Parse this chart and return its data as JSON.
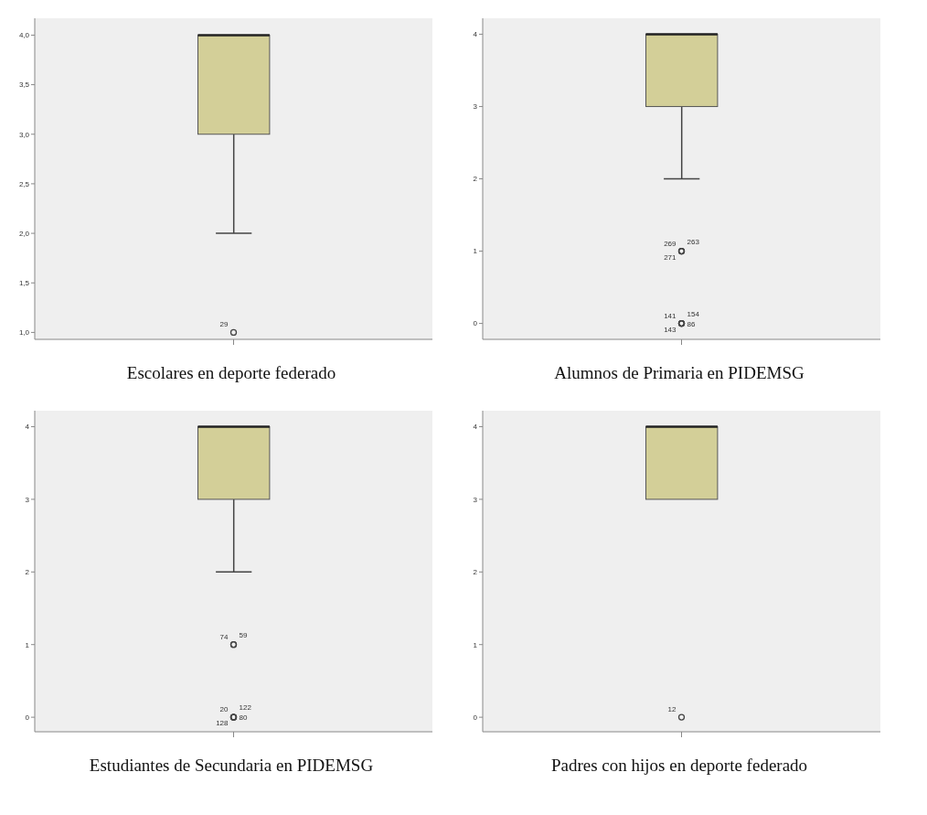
{
  "chart_data": [
    {
      "type": "box",
      "title": "Escolares en deporte federado",
      "categories": [
        null
      ],
      "color": "#d3cf98",
      "boxes": [
        {
          "low": 2,
          "q1": 3,
          "median": 4,
          "q3": 4,
          "high": 4,
          "outliers": [
            1
          ]
        }
      ],
      "ylim": [
        0.93,
        4.17
      ],
      "yticks": [
        {
          "value": 1,
          "label": "1,0"
        },
        {
          "value": 1.5,
          "label": "1,5"
        },
        {
          "value": 2,
          "label": "2,0"
        },
        {
          "value": 2.5,
          "label": "2,5"
        },
        {
          "value": 3,
          "label": "3,0"
        },
        {
          "value": 3.5,
          "label": "3,5"
        },
        {
          "value": 4,
          "label": "4,0"
        }
      ],
      "marker": "circle",
      "annotations": [
        "29"
      ]
    },
    {
      "type": "box",
      "title": "Alumnos de Primaria en PIDEMSG",
      "categories": [
        null
      ],
      "color": "#d3cf98",
      "boxes": [
        {
          "low": 2,
          "q1": 3,
          "median": 4,
          "q3": 4,
          "high": 4,
          "outliers": [
            1,
            1,
            1,
            0,
            0,
            0,
            0
          ]
        }
      ],
      "ylim": [
        -0.22,
        4.22
      ],
      "yticks": [
        0,
        1,
        2,
        3,
        4
      ],
      "marker": "circle",
      "annotations": [
        "269",
        "263",
        "271",
        "141",
        "154",
        "143",
        "86"
      ]
    },
    {
      "type": "box",
      "title": "Estudiantes de Secundaria en PIDEMSG",
      "categories": [
        null
      ],
      "color": "#d3cf98",
      "boxes": [
        {
          "low": 2,
          "q1": 3,
          "median": 4,
          "q3": 4,
          "high": 4,
          "outliers": [
            1,
            1,
            0,
            0,
            0,
            0
          ]
        }
      ],
      "ylim": [
        -0.2,
        4.22
      ],
      "yticks": [
        0,
        1,
        2,
        3,
        4
      ],
      "marker": "circle",
      "annotations": [
        "74",
        "59",
        "20",
        "122",
        "128",
        "80"
      ]
    },
    {
      "type": "box",
      "title": "Padres con hijos en deporte federado",
      "categories": [
        null
      ],
      "color": "#d3cf98",
      "boxes": [
        {
          "low": 3,
          "q1": 3,
          "median": 4,
          "q3": 4,
          "high": 4,
          "outliers": [
            0
          ]
        }
      ],
      "ylim": [
        -0.2,
        4.22
      ],
      "yticks": [
        0,
        1,
        2,
        3,
        4
      ],
      "marker": "circle",
      "annotations": [
        "12"
      ]
    }
  ]
}
